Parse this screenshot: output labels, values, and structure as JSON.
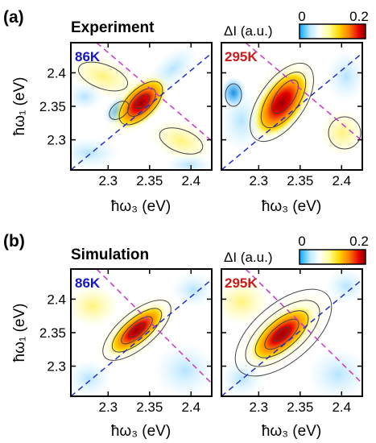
{
  "panel_a": {
    "letter": "(a)",
    "title": "Experiment"
  },
  "panel_b": {
    "letter": "(b)",
    "title": "Simulation"
  },
  "colorbar": {
    "label": "ΔI (a.u.)",
    "ticks": [
      "0",
      "0.2"
    ],
    "colors": [
      "#00a8ff",
      "#bfeaff",
      "#ffffff",
      "#ffff99",
      "#ffd700",
      "#ff7f00",
      "#e40000",
      "#8b0000"
    ]
  },
  "axes": {
    "xlabel": "ħω₃ (eV)",
    "ylabel": "ħω₁ (eV)",
    "xticks": [
      "2.3",
      "2.35",
      "2.4"
    ],
    "yticks": [
      "2.4",
      "2.35",
      "2.3"
    ]
  },
  "chart_data": [
    {
      "type": "heatmap",
      "name": "Experiment 86K",
      "label": "86K",
      "label_color": "#1515c8",
      "xlim": [
        2.255,
        2.425
      ],
      "ylim": [
        2.255,
        2.445
      ],
      "xticks": [
        2.3,
        2.35,
        2.4
      ],
      "yticks": [
        2.3,
        2.35,
        2.4
      ],
      "diagonal_color": "#1f2ecc",
      "antidiagonal_color": "#cc33cc",
      "peak_center": [
        2.35,
        2.355
      ],
      "peak_value": 0.2,
      "minimum_center": [
        2.31,
        2.34
      ],
      "minimum_value": -0.05
    },
    {
      "type": "heatmap",
      "name": "Experiment 295K",
      "label": "295K",
      "label_color": "#cc1a1a",
      "xlim": [
        2.255,
        2.425
      ],
      "ylim": [
        2.255,
        2.445
      ],
      "xticks": [
        2.3,
        2.35,
        2.4
      ],
      "yticks": [
        2.3,
        2.35,
        2.4
      ],
      "diagonal_color": "#1f2ecc",
      "antidiagonal_color": "#cc33cc",
      "peak_center": [
        2.335,
        2.355
      ],
      "peak_value": 0.2,
      "minimum_center": [
        2.295,
        2.35
      ],
      "minimum_value": -0.04
    },
    {
      "type": "heatmap",
      "name": "Simulation 86K",
      "label": "86K",
      "label_color": "#1515c8",
      "xlim": [
        2.255,
        2.425
      ],
      "ylim": [
        2.255,
        2.445
      ],
      "xticks": [
        2.3,
        2.35,
        2.4
      ],
      "yticks": [
        2.3,
        2.35,
        2.4
      ],
      "diagonal_color": "#1f2ecc",
      "antidiagonal_color": "#cc33cc",
      "peak_center": [
        2.345,
        2.355
      ],
      "peak_value": 0.2,
      "minimum_center": [
        2.39,
        2.3
      ],
      "minimum_value": -0.02
    },
    {
      "type": "heatmap",
      "name": "Simulation 295K",
      "label": "295K",
      "label_color": "#cc1a1a",
      "xlim": [
        2.255,
        2.425
      ],
      "ylim": [
        2.255,
        2.445
      ],
      "xticks": [
        2.3,
        2.35,
        2.4
      ],
      "yticks": [
        2.3,
        2.35,
        2.4
      ],
      "diagonal_color": "#1f2ecc",
      "antidiagonal_color": "#cc33cc",
      "peak_center": [
        2.34,
        2.345
      ],
      "peak_value": 0.2,
      "minimum_center": [
        2.39,
        2.3
      ],
      "minimum_value": -0.03
    }
  ]
}
